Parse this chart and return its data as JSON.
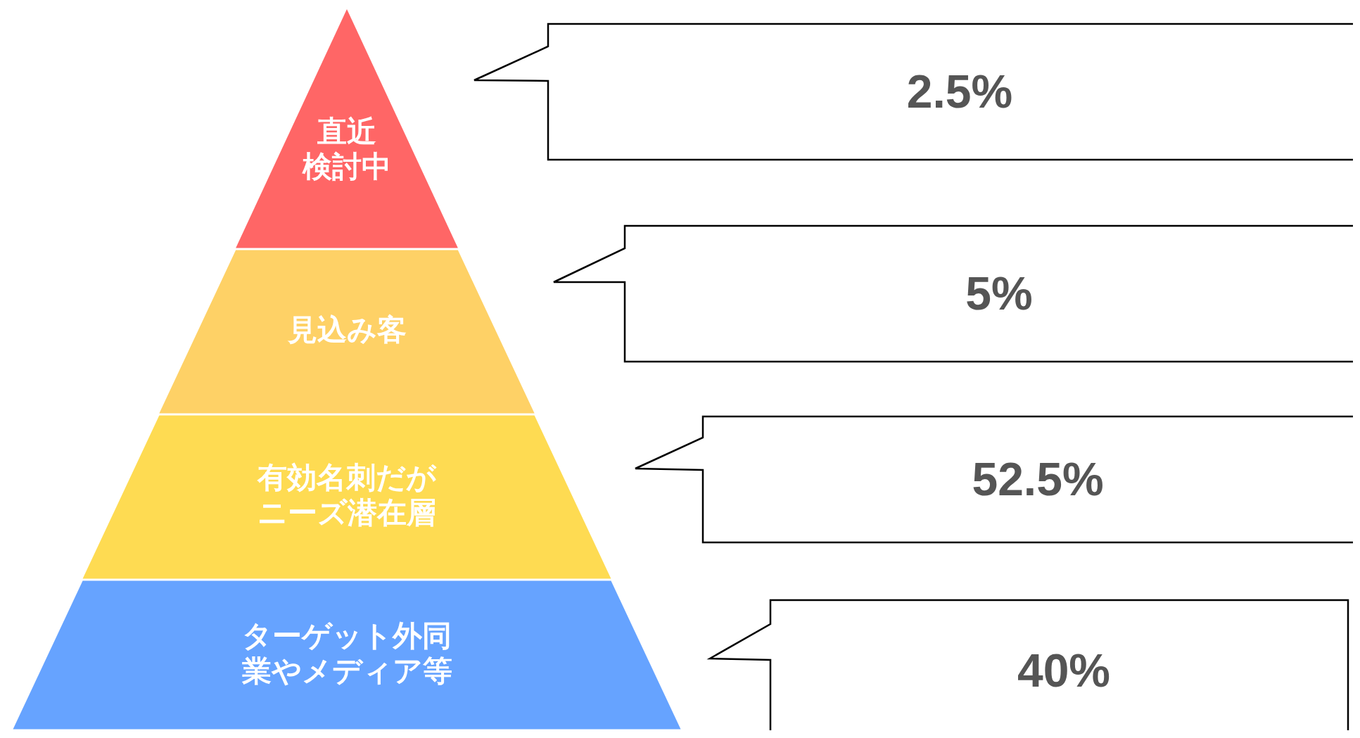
{
  "chart_data": {
    "type": "other",
    "categories": [
      "直近検討中",
      "見込み客",
      "有効名刺だがニーズ潜在層",
      "ターゲット外同業やメディア等"
    ],
    "values": [
      2.5,
      5,
      52.5,
      40
    ],
    "value_labels": [
      "2.5%",
      "5%",
      "52.5%",
      "40%"
    ],
    "colors": [
      "#ff6666",
      "#fed166",
      "#fedb52",
      "#66a3ff"
    ]
  }
}
